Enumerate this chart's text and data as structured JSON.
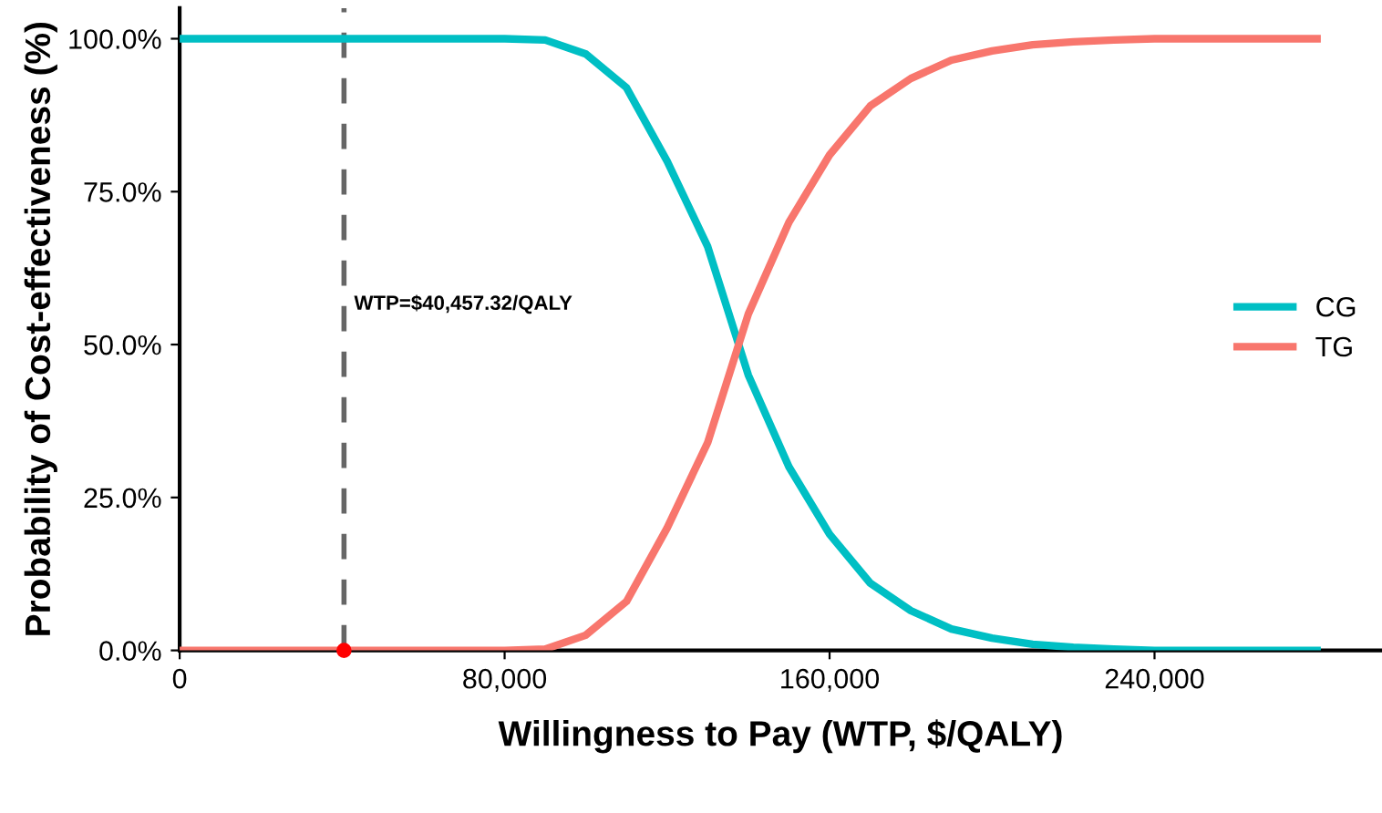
{
  "chart_data": {
    "type": "line",
    "xlabel": "Willingness to Pay (WTP, $/QALY)",
    "ylabel": "Probability of Cost-effectiveness (%)",
    "x": [
      0,
      10000,
      20000,
      30000,
      40000,
      50000,
      60000,
      70000,
      80000,
      90000,
      100000,
      110000,
      120000,
      130000,
      140000,
      150000,
      160000,
      170000,
      180000,
      190000,
      200000,
      210000,
      220000,
      230000,
      240000,
      250000,
      260000,
      270000,
      280000
    ],
    "series": [
      {
        "name": "CG",
        "color": "#00bfc4",
        "values": [
          100,
          100,
          100,
          100,
          100,
          100,
          100,
          100,
          100,
          99.8,
          97.5,
          92,
          80,
          66,
          45,
          30,
          19,
          11,
          6.5,
          3.5,
          2,
          1,
          0.5,
          0.2,
          0,
          0,
          0,
          0,
          0
        ]
      },
      {
        "name": "TG",
        "color": "#f8766d",
        "values": [
          0,
          0,
          0,
          0,
          0,
          0,
          0,
          0,
          0,
          0.2,
          2.5,
          8,
          20,
          34,
          55,
          70,
          81,
          89,
          93.5,
          96.5,
          98,
          99,
          99.5,
          99.8,
          100,
          100,
          100,
          100,
          100
        ]
      },
      {
        "type": "scatter",
        "color": "#ff0000",
        "x": [
          40457.32
        ],
        "values": [
          0
        ]
      }
    ],
    "xlim": [
      0,
      296000
    ],
    "xticks": [
      {
        "value": 0,
        "label": "0"
      },
      {
        "value": 80000,
        "label": "80,000"
      },
      {
        "value": 160000,
        "label": "160,000"
      },
      {
        "value": 240000,
        "label": "240,000"
      }
    ],
    "ylim": [
      0,
      105
    ],
    "yticks": [
      {
        "value": 0,
        "label": "0.0%"
      },
      {
        "value": 25,
        "label": "25.0%"
      },
      {
        "value": 50,
        "label": "50.0%"
      },
      {
        "value": 75,
        "label": "75.0%"
      },
      {
        "value": 100,
        "label": "100.0%"
      }
    ],
    "ref_lines": [
      {
        "axis": "x",
        "value": 40457.32,
        "color": "#666666",
        "line_style": "dashed"
      }
    ],
    "annotations": [
      {
        "text": "WTP=$40,457.32/QALY",
        "x": 40457.32,
        "y": 55
      }
    ],
    "legend": "right",
    "grid": false
  }
}
